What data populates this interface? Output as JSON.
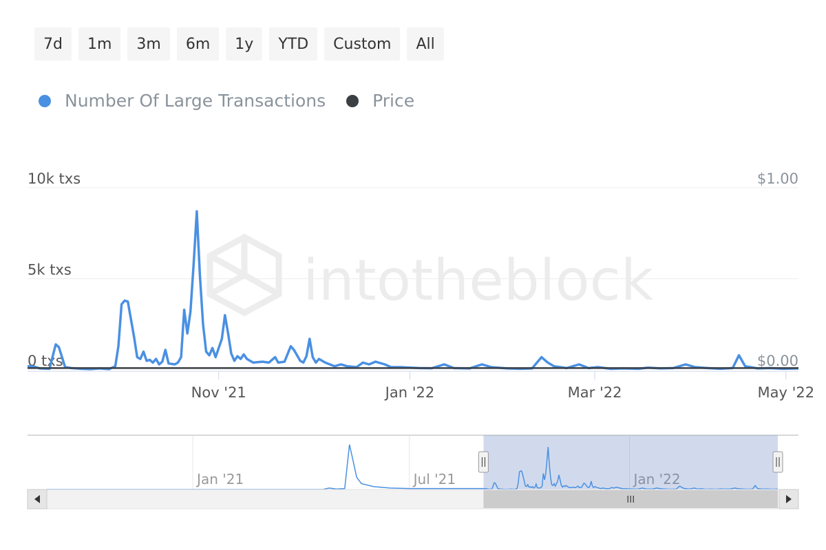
{
  "range_buttons": [
    "7d",
    "1m",
    "3m",
    "6m",
    "1y",
    "YTD",
    "Custom",
    "All"
  ],
  "legend": [
    {
      "label": "Number Of Large Transactions",
      "color": "#4a90e2"
    },
    {
      "label": "Price",
      "color": "#3a3f44"
    }
  ],
  "watermark": "intotheblock",
  "chart_data": {
    "type": "line",
    "y_left_ticks": [
      "0 txs",
      "5k txs",
      "10k txs"
    ],
    "y_left_range": [
      0,
      10000
    ],
    "y_right_ticks": [
      "$0.00",
      "$1.00"
    ],
    "y_right_range": [
      0,
      1
    ],
    "x_range": [
      "2021-09-01",
      "2022-05-05"
    ],
    "x_ticks": [
      {
        "date": "2021-11-01",
        "label": "Nov '21"
      },
      {
        "date": "2022-01-01",
        "label": "Jan '22"
      },
      {
        "date": "2022-03-01",
        "label": "Mar '22"
      },
      {
        "date": "2022-05-01",
        "label": "May '22"
      }
    ],
    "series": [
      {
        "name": "Number Of Large Transactions",
        "color": "#4a90e2",
        "points": [
          [
            "2021-09-01",
            200
          ],
          [
            "2021-09-03",
            180
          ],
          [
            "2021-09-05",
            80
          ],
          [
            "2021-09-08",
            60
          ],
          [
            "2021-09-10",
            1400
          ],
          [
            "2021-09-11",
            1250
          ],
          [
            "2021-09-13",
            150
          ],
          [
            "2021-09-15",
            100
          ],
          [
            "2021-09-18",
            60
          ],
          [
            "2021-09-21",
            40
          ],
          [
            "2021-09-24",
            80
          ],
          [
            "2021-09-27",
            40
          ],
          [
            "2021-09-29",
            200
          ],
          [
            "2021-09-30",
            1300
          ],
          [
            "2021-10-01",
            3600
          ],
          [
            "2021-10-02",
            3800
          ],
          [
            "2021-10-03",
            3750
          ],
          [
            "2021-10-05",
            1800
          ],
          [
            "2021-10-06",
            700
          ],
          [
            "2021-10-07",
            600
          ],
          [
            "2021-10-08",
            1000
          ],
          [
            "2021-10-09",
            500
          ],
          [
            "2021-10-10",
            550
          ],
          [
            "2021-10-11",
            400
          ],
          [
            "2021-10-12",
            600
          ],
          [
            "2021-10-13",
            300
          ],
          [
            "2021-10-14",
            450
          ],
          [
            "2021-10-15",
            1100
          ],
          [
            "2021-10-16",
            350
          ],
          [
            "2021-10-18",
            300
          ],
          [
            "2021-10-19",
            400
          ],
          [
            "2021-10-20",
            700
          ],
          [
            "2021-10-21",
            3300
          ],
          [
            "2021-10-22",
            2000
          ],
          [
            "2021-10-23",
            3200
          ],
          [
            "2021-10-24",
            5800
          ],
          [
            "2021-10-25",
            8700
          ],
          [
            "2021-10-26",
            5200
          ],
          [
            "2021-10-27",
            2500
          ],
          [
            "2021-10-28",
            1000
          ],
          [
            "2021-10-29",
            800
          ],
          [
            "2021-10-30",
            1200
          ],
          [
            "2021-10-31",
            700
          ],
          [
            "2021-11-02",
            1700
          ],
          [
            "2021-11-03",
            3000
          ],
          [
            "2021-11-04",
            2000
          ],
          [
            "2021-11-05",
            900
          ],
          [
            "2021-11-06",
            500
          ],
          [
            "2021-11-07",
            750
          ],
          [
            "2021-11-08",
            600
          ],
          [
            "2021-11-09",
            850
          ],
          [
            "2021-11-10",
            600
          ],
          [
            "2021-11-12",
            400
          ],
          [
            "2021-11-15",
            450
          ],
          [
            "2021-11-17",
            400
          ],
          [
            "2021-11-19",
            700
          ],
          [
            "2021-11-20",
            400
          ],
          [
            "2021-11-22",
            450
          ],
          [
            "2021-11-24",
            1300
          ],
          [
            "2021-11-25",
            1100
          ],
          [
            "2021-11-27",
            500
          ],
          [
            "2021-11-28",
            400
          ],
          [
            "2021-11-29",
            750
          ],
          [
            "2021-11-30",
            1700
          ],
          [
            "2021-12-01",
            700
          ],
          [
            "2021-12-02",
            400
          ],
          [
            "2021-12-03",
            600
          ],
          [
            "2021-12-05",
            400
          ],
          [
            "2021-12-08",
            200
          ],
          [
            "2021-12-10",
            300
          ],
          [
            "2021-12-12",
            200
          ],
          [
            "2021-12-15",
            150
          ],
          [
            "2021-12-17",
            400
          ],
          [
            "2021-12-19",
            300
          ],
          [
            "2021-12-21",
            450
          ],
          [
            "2021-12-24",
            300
          ],
          [
            "2021-12-26",
            150
          ],
          [
            "2021-12-29",
            150
          ],
          [
            "2022-01-01",
            120
          ],
          [
            "2022-01-04",
            100
          ],
          [
            "2022-01-08",
            90
          ],
          [
            "2022-01-12",
            300
          ],
          [
            "2022-01-15",
            100
          ],
          [
            "2022-01-20",
            80
          ],
          [
            "2022-01-24",
            300
          ],
          [
            "2022-01-27",
            150
          ],
          [
            "2022-02-01",
            80
          ],
          [
            "2022-02-05",
            60
          ],
          [
            "2022-02-09",
            80
          ],
          [
            "2022-02-12",
            700
          ],
          [
            "2022-02-14",
            400
          ],
          [
            "2022-02-16",
            200
          ],
          [
            "2022-02-20",
            100
          ],
          [
            "2022-02-24",
            300
          ],
          [
            "2022-02-27",
            100
          ],
          [
            "2022-03-02",
            150
          ],
          [
            "2022-03-06",
            60
          ],
          [
            "2022-03-10",
            80
          ],
          [
            "2022-03-15",
            60
          ],
          [
            "2022-03-18",
            120
          ],
          [
            "2022-03-22",
            80
          ],
          [
            "2022-03-26",
            100
          ],
          [
            "2022-03-30",
            300
          ],
          [
            "2022-04-02",
            150
          ],
          [
            "2022-04-06",
            100
          ],
          [
            "2022-04-10",
            60
          ],
          [
            "2022-04-14",
            100
          ],
          [
            "2022-04-16",
            800
          ],
          [
            "2022-04-18",
            200
          ],
          [
            "2022-04-22",
            80
          ],
          [
            "2022-04-26",
            100
          ],
          [
            "2022-04-30",
            60
          ],
          [
            "2022-05-05",
            80
          ]
        ]
      },
      {
        "name": "Price",
        "color": "#3a3f44",
        "points": [
          [
            "2021-09-01",
            0.01
          ],
          [
            "2022-05-05",
            0.01
          ]
        ]
      }
    ]
  },
  "navigator": {
    "x_range": [
      "2020-09-01",
      "2022-05-05"
    ],
    "ticks": [
      {
        "date": "2021-01-01",
        "label": "Jan '21"
      },
      {
        "date": "2021-07-01",
        "label": "Jul '21"
      },
      {
        "date": "2022-01-01",
        "label": "Jan '22"
      }
    ],
    "selected_range": [
      "2021-09-01",
      "2022-05-05"
    ]
  }
}
